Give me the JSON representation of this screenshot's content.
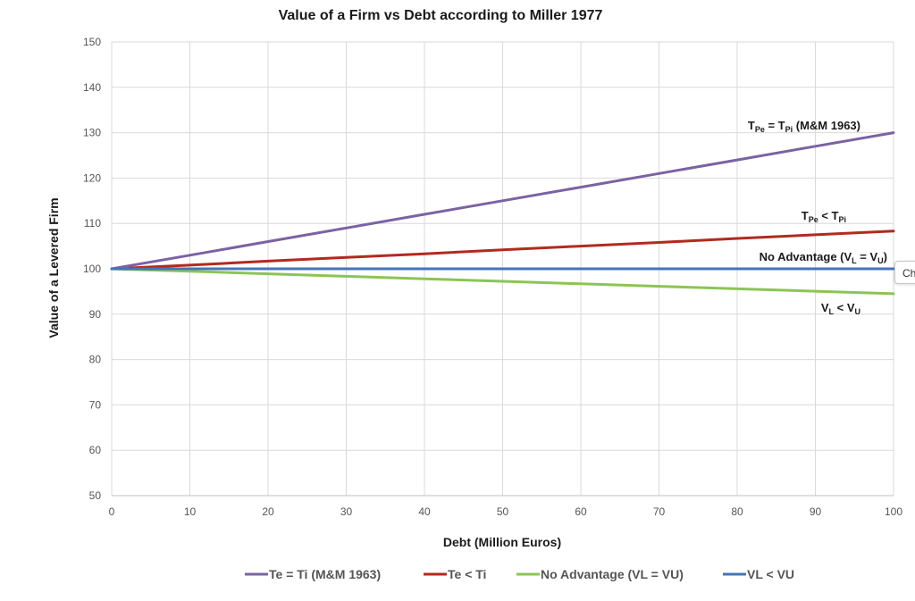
{
  "chart_data": {
    "type": "line",
    "title": "Value of a Firm vs Debt according to Miller 1977",
    "xlabel": "Debt (Million Euros)",
    "ylabel": "Value of a Levered Firm",
    "xlim": [
      0,
      100
    ],
    "ylim": [
      50,
      150
    ],
    "x_ticks": [
      0,
      10,
      20,
      30,
      40,
      50,
      60,
      70,
      80,
      90,
      100
    ],
    "y_ticks": [
      50,
      60,
      70,
      80,
      90,
      100,
      110,
      120,
      130,
      140,
      150
    ],
    "grid": true,
    "legend_position": "bottom",
    "x": [
      0,
      10,
      20,
      30,
      40,
      50,
      60,
      70,
      80,
      90,
      100
    ],
    "series": [
      {
        "name": "Te = Ti (M&M 1963)",
        "color": "#7b62a3",
        "values": [
          100,
          103,
          106,
          109,
          112,
          115,
          118,
          121,
          124,
          127,
          130
        ]
      },
      {
        "name": "Te < Ti",
        "color": "#b22a1f",
        "values": [
          100,
          100.8,
          101.7,
          102.5,
          103.3,
          104.2,
          105,
          105.8,
          106.7,
          107.5,
          108.3
        ]
      },
      {
        "name": "No Advantage (VL = VU)",
        "color": "#8cc455",
        "values": [
          100,
          99.45,
          98.9,
          98.35,
          97.8,
          97.25,
          96.7,
          96.15,
          95.6,
          95.05,
          94.5
        ]
      },
      {
        "name": "VL < VU",
        "color": "#4574b8",
        "values": [
          100,
          100,
          100,
          100,
          100,
          100,
          100,
          100,
          100,
          100,
          100
        ]
      }
    ],
    "annotations": [
      {
        "id": "mm",
        "parts": [
          {
            "t": "T"
          },
          {
            "t": "Pe",
            "sub": true
          },
          {
            "t": " = T"
          },
          {
            "t": "Pi",
            "sub": true
          },
          {
            "t": " (M&M 1963)"
          }
        ]
      },
      {
        "id": "less",
        "parts": [
          {
            "t": "T"
          },
          {
            "t": "Pe",
            "sub": true
          },
          {
            "t": "  < T"
          },
          {
            "t": "Pi",
            "sub": true
          }
        ]
      },
      {
        "id": "noadv",
        "parts": [
          {
            "t": "No Advantage (V"
          },
          {
            "t": "L",
            "sub": true
          },
          {
            "t": " = V"
          },
          {
            "t": "U",
            "sub": true
          },
          {
            "t": ")"
          }
        ]
      },
      {
        "id": "vlvu",
        "parts": [
          {
            "t": "V"
          },
          {
            "t": "L",
            "sub": true
          },
          {
            "t": " < V"
          },
          {
            "t": "U",
            "sub": true
          }
        ]
      }
    ]
  },
  "tab": {
    "label": "Ch"
  }
}
